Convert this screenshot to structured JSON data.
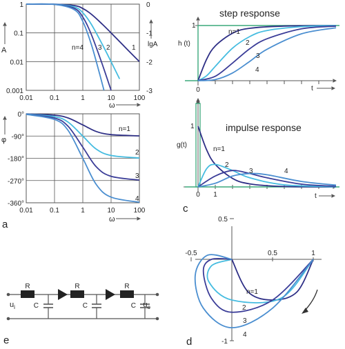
{
  "colors": {
    "c1": "#2e2f86",
    "c2": "#45bce0",
    "c3": "#3b3d98",
    "c4": "#4a8ed0",
    "ref": "#3aa87a",
    "axis": "#555555"
  },
  "chart_data": [
    {
      "id": "a-magnitude",
      "type": "line",
      "title": "",
      "scale": "log-log",
      "xlabel": "ω",
      "ylabel_left": "A",
      "ylabel_right": "lgA",
      "xlim": [
        0.01,
        100
      ],
      "ylim": [
        0.001,
        1
      ],
      "x_ticks": [
        "0.01",
        "0.1",
        "1",
        "10",
        "100"
      ],
      "y_ticks_left": [
        "0.001",
        "0.01",
        "0.1",
        "1"
      ],
      "y_ticks_right": [
        "-3",
        "-2",
        "-1",
        "0"
      ],
      "grid": true,
      "series": [
        {
          "name": "1",
          "order": 1,
          "x": [
            0.01,
            0.1,
            0.5,
            1,
            2,
            5,
            10,
            30,
            100
          ],
          "y": [
            1,
            0.995,
            0.894,
            0.707,
            0.447,
            0.196,
            0.1,
            0.033,
            0.01
          ]
        },
        {
          "name": "2",
          "order": 2,
          "x": [
            0.01,
            0.1,
            0.5,
            1,
            2,
            5,
            10,
            20
          ],
          "y": [
            1,
            0.99,
            0.8,
            0.5,
            0.2,
            0.038,
            0.0099,
            0.0025
          ]
        },
        {
          "name": "3",
          "order": 3,
          "x": [
            0.01,
            0.1,
            0.5,
            1,
            2,
            5,
            10
          ],
          "y": [
            1,
            0.985,
            0.716,
            0.354,
            0.089,
            0.0075,
            0.001
          ]
        },
        {
          "name": "n=4",
          "order": 4,
          "x": [
            0.01,
            0.1,
            0.5,
            1,
            2,
            4,
            5.6
          ],
          "y": [
            1,
            0.98,
            0.64,
            0.25,
            0.04,
            0.0035,
            0.001
          ]
        }
      ]
    },
    {
      "id": "b-phase",
      "type": "line",
      "title": "",
      "scale": "semilog-x",
      "xlabel": "ω",
      "ylabel": "φ",
      "xlim": [
        0.01,
        100
      ],
      "ylim": [
        -360,
        0
      ],
      "x_ticks": [
        "0.01",
        "0.1",
        "1",
        "10",
        "100"
      ],
      "y_ticks": [
        "0°",
        "-90°",
        "-180°",
        "-270°",
        "-360°"
      ],
      "grid": true,
      "series": [
        {
          "name": "n=1",
          "order": 1,
          "x": [
            0.01,
            0.1,
            0.3,
            1,
            3,
            10,
            100
          ],
          "y": [
            -0.6,
            -5.7,
            -16.7,
            -45,
            -71.6,
            -84.3,
            -89.4
          ]
        },
        {
          "name": "2",
          "order": 2,
          "x": [
            0.01,
            0.1,
            0.3,
            1,
            3,
            10,
            100
          ],
          "y": [
            -1.1,
            -11.4,
            -33.4,
            -90,
            -143.1,
            -168.6,
            -178.9
          ]
        },
        {
          "name": "3",
          "order": 3,
          "x": [
            0.01,
            0.1,
            0.3,
            1,
            3,
            10,
            100
          ],
          "y": [
            -1.7,
            -17.1,
            -50.1,
            -135,
            -214.7,
            -252.9,
            -268.3
          ]
        },
        {
          "name": "4",
          "order": 4,
          "x": [
            0.01,
            0.1,
            0.3,
            1,
            3,
            10,
            100
          ],
          "y": [
            -2.3,
            -22.8,
            -66.8,
            -180,
            -286.3,
            -337.2,
            -357.7
          ]
        }
      ]
    },
    {
      "id": "c-step",
      "type": "line",
      "title": "step response",
      "xlabel": "t",
      "ylabel": "h (t)",
      "x_ticks": [
        "0"
      ],
      "y_ticks": [
        "1"
      ],
      "xlim": [
        -0.7,
        8
      ],
      "ylim": [
        0,
        1.1
      ],
      "reference": "unit step",
      "series": [
        {
          "name": "n=1",
          "order": 1,
          "x": [
            0,
            0.5,
            1,
            2,
            3,
            5,
            8
          ],
          "y": [
            0,
            0.39,
            0.63,
            0.86,
            0.95,
            0.99,
            1
          ]
        },
        {
          "name": "2",
          "order": 2,
          "x": [
            0,
            0.5,
            1,
            2,
            3,
            4,
            6,
            8
          ],
          "y": [
            0,
            0.09,
            0.26,
            0.59,
            0.8,
            0.91,
            0.98,
            1
          ]
        },
        {
          "name": "3",
          "order": 3,
          "x": [
            0,
            1,
            2,
            3,
            4,
            6,
            8
          ],
          "y": [
            0,
            0.08,
            0.32,
            0.58,
            0.76,
            0.94,
            0.99
          ]
        },
        {
          "name": "4",
          "order": 4,
          "x": [
            0,
            1,
            2,
            3,
            4,
            6,
            8
          ],
          "y": [
            0,
            0.02,
            0.14,
            0.35,
            0.57,
            0.85,
            0.96
          ]
        }
      ]
    },
    {
      "id": "c-impulse",
      "type": "line",
      "title": "impulse response",
      "xlabel": "t",
      "ylabel": "g(t)",
      "x_ticks": [
        "0",
        "1"
      ],
      "y_ticks": [
        "1"
      ],
      "xlim": [
        -0.7,
        8
      ],
      "ylim": [
        0,
        1.1
      ],
      "reference": "unit impulse",
      "series": [
        {
          "name": "n=1",
          "order": 1,
          "x": [
            0,
            0.5,
            1,
            2,
            3,
            5,
            8
          ],
          "y": [
            1,
            0.61,
            0.37,
            0.14,
            0.05,
            0.007,
            0
          ]
        },
        {
          "name": "2",
          "order": 2,
          "x": [
            0,
            0.5,
            1,
            2,
            3,
            5,
            8
          ],
          "y": [
            0,
            0.3,
            0.37,
            0.27,
            0.15,
            0.034,
            0.003
          ]
        },
        {
          "name": "3",
          "order": 3,
          "x": [
            0,
            1,
            2,
            3,
            4,
            6,
            8
          ],
          "y": [
            0,
            0.18,
            0.27,
            0.22,
            0.15,
            0.045,
            0.011
          ]
        },
        {
          "name": "4",
          "order": 4,
          "x": [
            0,
            1,
            2,
            3,
            4,
            6,
            8
          ],
          "y": [
            0,
            0.06,
            0.18,
            0.22,
            0.2,
            0.09,
            0.029
          ]
        }
      ]
    },
    {
      "id": "d-nyquist",
      "type": "line",
      "title": "",
      "xlim": [
        -0.62,
        1.05
      ],
      "ylim": [
        -1.0,
        0.5
      ],
      "x_ticks": [
        "-0.5",
        "0.5",
        "1"
      ],
      "y_ticks": [
        "0.5",
        "-1"
      ],
      "series": [
        {
          "name": "n=1",
          "order": 1,
          "x": [
            1,
            0.8,
            0.5,
            0.2,
            0
          ],
          "y": [
            0,
            -0.4,
            -0.5,
            -0.4,
            0
          ]
        },
        {
          "name": "2",
          "order": 2,
          "x": [
            1,
            0.6,
            0,
            -0.28,
            -0.25,
            0
          ],
          "y": [
            0,
            -0.48,
            -0.5,
            -0.28,
            -0.08,
            0
          ]
        },
        {
          "name": "3",
          "order": 3,
          "x": [
            1,
            0.5,
            0,
            -0.25,
            -0.35,
            -0.25,
            0
          ],
          "y": [
            0,
            -0.5,
            -0.65,
            -0.48,
            -0.14,
            0,
            0
          ]
        },
        {
          "name": "4",
          "order": 4,
          "x": [
            1,
            0.5,
            0,
            -0.35,
            -0.45,
            -0.3,
            0
          ],
          "y": [
            0,
            -0.6,
            -0.84,
            -0.6,
            -0.2,
            0.05,
            0
          ]
        }
      ]
    }
  ],
  "panels": {
    "a": "a",
    "c": "c",
    "d": "d",
    "e": "e"
  },
  "circuit": {
    "r_label": "R",
    "c_label": "C",
    "input_label": "u",
    "input_sub": "i",
    "output_label": "u",
    "output_sub": "o"
  }
}
